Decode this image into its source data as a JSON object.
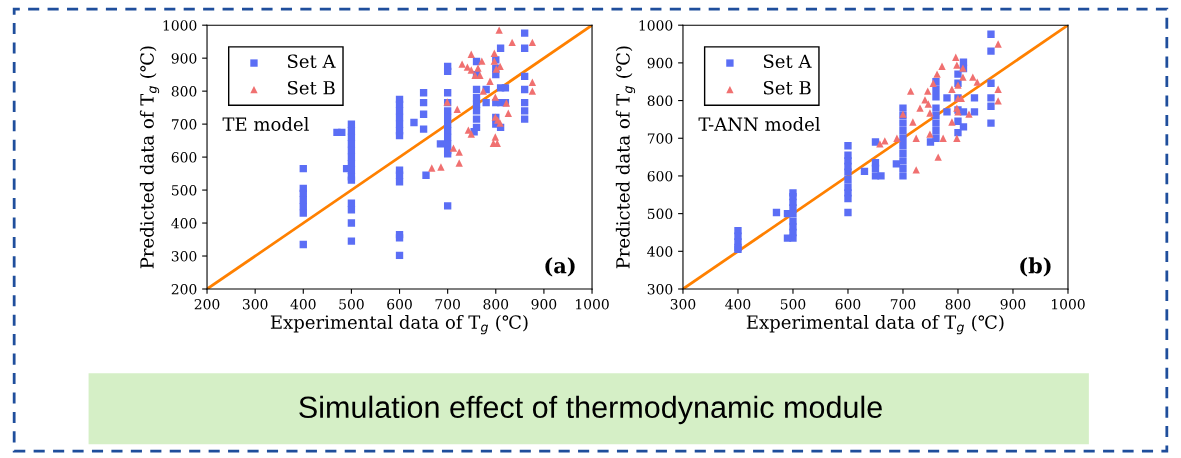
{
  "chart_data": [
    {
      "type": "scatter",
      "xlabel": "Experimental data of T$_{g}$ (℃)",
      "ylabel": "Predicted data of T$_{g}$ (℃)",
      "xlim": [
        200,
        1000
      ],
      "ylim": [
        200,
        1000
      ],
      "xticks": [
        200,
        300,
        400,
        500,
        600,
        700,
        800,
        900,
        1000
      ],
      "yticks": [
        200,
        300,
        400,
        500,
        600,
        700,
        800,
        900,
        1000
      ],
      "grid": false,
      "legend": "top left",
      "annotations": [
        "TE model",
        "(a)"
      ],
      "series": [
        {
          "name": "Set A",
          "marker": "square",
          "color": "#5b6ef5",
          "x": [
            400,
            400,
            400,
            400,
            400,
            400,
            400,
            470,
            480,
            490,
            500,
            500,
            500,
            500,
            500,
            500,
            500,
            500,
            500,
            500,
            500,
            500,
            500,
            500,
            600,
            600,
            600,
            600,
            600,
            600,
            600,
            600,
            600,
            600,
            600,
            600,
            600,
            630,
            650,
            650,
            650,
            650,
            655,
            685,
            700,
            700,
            700,
            700,
            700,
            700,
            700,
            700,
            700,
            700,
            700,
            700,
            700,
            755,
            760,
            760,
            760,
            760,
            760,
            760,
            760,
            760,
            780,
            780,
            800,
            800,
            800,
            800,
            800,
            800,
            810,
            810,
            810,
            810,
            820,
            820,
            860,
            860,
            860,
            860,
            860,
            860,
            860
          ],
          "values": [
            565,
            505,
            490,
            470,
            450,
            430,
            335,
            675,
            675,
            565,
            700,
            680,
            660,
            640,
            620,
            600,
            580,
            560,
            540,
            530,
            460,
            440,
            400,
            345,
            775,
            760,
            740,
            720,
            700,
            680,
            665,
            560,
            545,
            525,
            365,
            355,
            302,
            705,
            795,
            765,
            730,
            685,
            545,
            640,
            875,
            860,
            795,
            765,
            740,
            720,
            700,
            680,
            660,
            640,
            620,
            610,
            452,
            677,
            890,
            850,
            805,
            780,
            760,
            740,
            715,
            690,
            805,
            765,
            895,
            870,
            850,
            765,
            720,
            700,
            930,
            810,
            765,
            690,
            810,
            765,
            976,
            930,
            845,
            805,
            765,
            740,
            715
          ]
        },
        {
          "name": "Set B",
          "marker": "triangle",
          "color": "#f07070",
          "x": [
            807,
            834,
            876,
            749,
            797,
            730,
            741,
            749,
            771,
            763,
            757,
            767,
            797,
            801,
            809,
            788,
            876,
            876,
            774,
            699,
            799,
            720,
            822,
            826,
            799,
            804,
            809,
            743,
            749,
            799,
            795,
            803,
            712,
            724,
            724,
            667,
            686
          ],
          "values": [
            985,
            948,
            948,
            912,
            915,
            882,
            873,
            864,
            891,
            870,
            848,
            848,
            891,
            867,
            875,
            830,
            827,
            800,
            800,
            767,
            782,
            745,
            764,
            733,
            721,
            712,
            703,
            682,
            670,
            661,
            642,
            642,
            627,
            615,
            582,
            567,
            570
          ]
        },
        {
          "type": "line",
          "color": "#ff8000",
          "x": [
            200,
            1000
          ],
          "values": [
            200,
            1000
          ]
        }
      ]
    },
    {
      "type": "scatter",
      "xlabel": "Experimental data of T$_{g}$ (℃)",
      "ylabel": "Predicted data of T$_{g}$ (℃)",
      "xlim": [
        300,
        1000
      ],
      "ylim": [
        300,
        1000
      ],
      "xticks": [
        300,
        400,
        500,
        600,
        700,
        800,
        900,
        1000
      ],
      "yticks": [
        300,
        400,
        500,
        600,
        700,
        800,
        900,
        1000
      ],
      "grid": false,
      "legend": "top left",
      "annotations": [
        "T-ANN model",
        "(b)",
        "Simulation effect of thermodynamic module"
      ],
      "series": [
        {
          "name": "Set A",
          "marker": "square",
          "color": "#5b6ef5",
          "x": [
            400,
            400,
            400,
            400,
            400,
            470,
            490,
            500,
            500,
            500,
            500,
            500,
            500,
            500,
            500,
            500,
            490,
            600,
            600,
            600,
            600,
            600,
            600,
            600,
            600,
            600,
            600,
            630,
            650,
            650,
            650,
            650,
            660,
            688,
            700,
            700,
            700,
            700,
            700,
            700,
            700,
            700,
            700,
            700,
            750,
            760,
            760,
            760,
            760,
            760,
            760,
            760,
            760,
            780,
            780,
            800,
            800,
            800,
            800,
            800,
            800,
            810,
            810,
            810,
            810,
            830,
            830,
            860,
            860,
            860,
            860,
            860,
            860
          ],
          "values": [
            455,
            440,
            425,
            410,
            405,
            503,
            500,
            555,
            545,
            530,
            515,
            500,
            480,
            465,
            450,
            435,
            435,
            680,
            655,
            640,
            625,
            610,
            590,
            570,
            555,
            540,
            503,
            612,
            690,
            635,
            620,
            600,
            600,
            632,
            780,
            760,
            740,
            720,
            700,
            680,
            660,
            640,
            620,
            600,
            690,
            850,
            830,
            810,
            780,
            760,
            740,
            720,
            700,
            807,
            770,
            870,
            846,
            807,
            775,
            745,
            715,
            902,
            885,
            770,
            730,
            807,
            770,
            976,
            931,
            846,
            807,
            785,
            740
          ]
        },
        {
          "name": "Set B",
          "marker": "triangle",
          "color": "#f07070",
          "x": [
            873,
            796,
            771,
            798,
            809,
            762,
            755,
            827,
            835,
            809,
            714,
            745,
            789,
            800,
            873,
            873,
            740,
            746,
            731,
            800,
            806,
            798,
            800,
            749,
            700,
            820,
            718,
            789,
            749,
            724,
            773,
            798,
            764,
            724,
            689,
            667,
            658
          ],
          "values": [
            950,
            915,
            891,
            894,
            886,
            870,
            846,
            862,
            849,
            862,
            825,
            825,
            830,
            841,
            830,
            799,
            802,
            791,
            780,
            806,
            806,
            780,
            770,
            767,
            764,
            764,
            743,
            743,
            711,
            700,
            700,
            700,
            650,
            616,
            700,
            693,
            685
          ]
        },
        {
          "type": "line",
          "color": "#ff8000",
          "x": [
            300,
            1000
          ],
          "values": [
            300,
            1000
          ]
        }
      ]
    }
  ]
}
